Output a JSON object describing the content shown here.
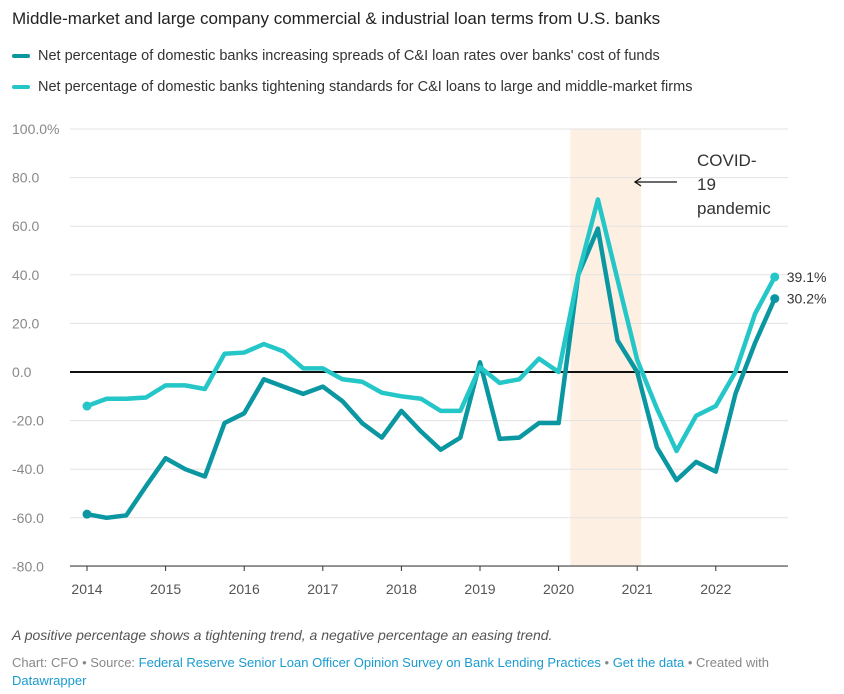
{
  "chart_data": {
    "type": "line",
    "title": "Middle-market and large company commercial & industrial loan terms from U.S. banks",
    "x_start": 2014,
    "x_step": 0.25,
    "xticks": [
      "2014",
      "2015",
      "2016",
      "2017",
      "2018",
      "2019",
      "2020",
      "2021",
      "2022"
    ],
    "yticks": [
      "100.0%",
      "80.0",
      "60.0",
      "40.0",
      "20.0",
      "0.0",
      "-20.0",
      "-40.0",
      "-60.0",
      "-80.0"
    ],
    "ylim": [
      -80,
      100
    ],
    "series": [
      {
        "name": "Net percentage of domestic banks increasing spreads of C&I loan rates over banks' cost of funds",
        "color": "#0b97a1",
        "end_label": "30.2%",
        "values": [
          -58.5,
          -60,
          -59,
          -47,
          -35.5,
          -40,
          -43,
          -21,
          -17,
          -3,
          -6,
          -9,
          -6,
          -12,
          -21,
          -27,
          -16,
          -24.5,
          -32,
          -27,
          4,
          -27.5,
          -27,
          -21,
          -21,
          40,
          59,
          13,
          0,
          -31,
          -44.5,
          -37,
          -41,
          -9,
          12,
          30.2
        ]
      },
      {
        "name": "Net percentage of domestic banks tightening standards for C&I loans to large and middle-market firms",
        "color": "#24c6c8",
        "end_label": "39.1%",
        "values": [
          -14,
          -11,
          -11,
          -10.5,
          -5.5,
          -5.5,
          -7,
          7.5,
          8,
          11.5,
          8.5,
          1.5,
          1.5,
          -3,
          -4,
          -8.5,
          -10,
          -11,
          -16,
          -16,
          2,
          -4.5,
          -3,
          5.5,
          0,
          40,
          71,
          38,
          5,
          -15,
          -32.5,
          -18,
          -14,
          0,
          24,
          39.1
        ]
      }
    ],
    "highlight": {
      "range": [
        2020.15,
        2021.05
      ],
      "label_lines": [
        "COVID-",
        "19",
        "pandemic"
      ]
    }
  },
  "note": "A positive percentage shows a tightening trend, a negative percentage an easing trend.",
  "footer": {
    "prefix": "Chart: CFO • Source: ",
    "source": "Federal Reserve Senior Loan Officer Opinion Survey on Bank Lending Practices",
    "sep": " • ",
    "get_data": "Get the data",
    "created": " • Created with ",
    "dw": "Datawrapper"
  }
}
